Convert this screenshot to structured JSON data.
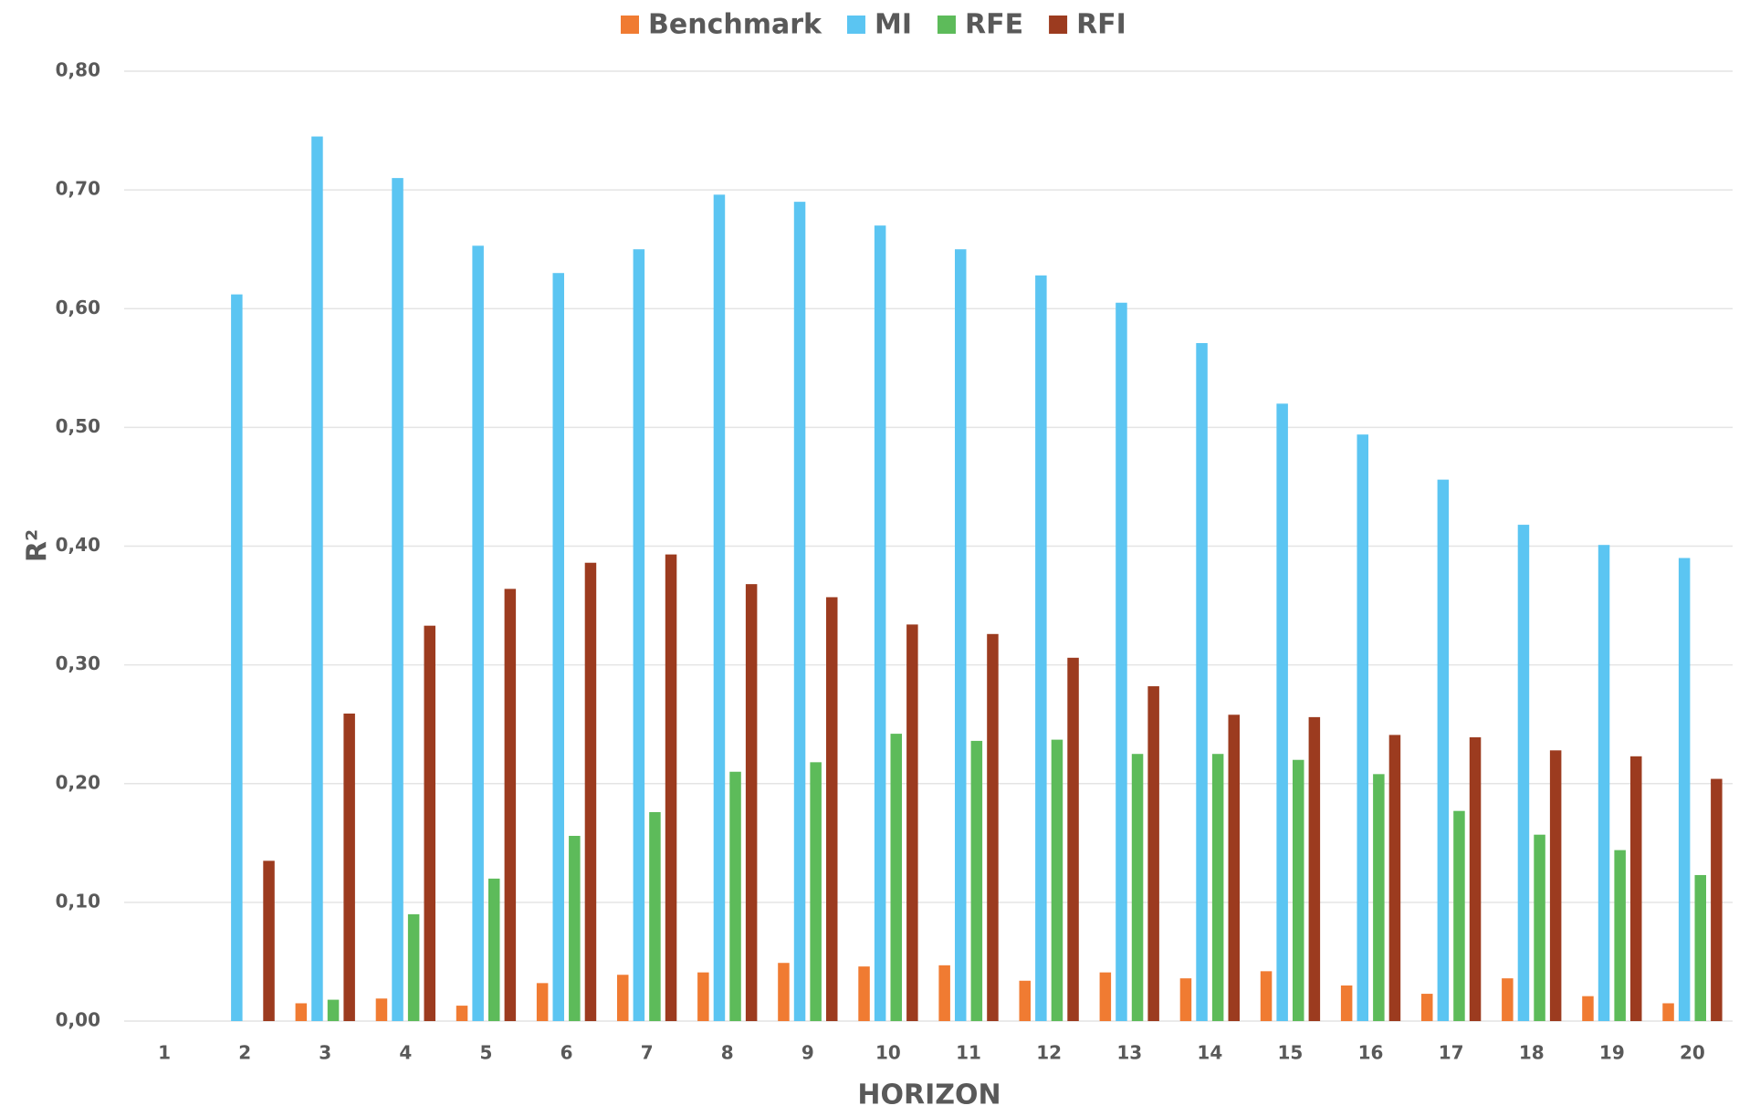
{
  "chart_data": {
    "type": "bar",
    "xlabel": "HORIZON",
    "ylabel": "R²",
    "categories": [
      "1",
      "2",
      "3",
      "4",
      "5",
      "6",
      "7",
      "8",
      "9",
      "10",
      "11",
      "12",
      "13",
      "14",
      "15",
      "16",
      "17",
      "18",
      "19",
      "20"
    ],
    "series": [
      {
        "name": "Benchmark",
        "color": "#f07b32",
        "values": [
          0,
          0,
          0.015,
          0.019,
          0.013,
          0.032,
          0.039,
          0.041,
          0.049,
          0.046,
          0.047,
          0.034,
          0.041,
          0.036,
          0.042,
          0.03,
          0.023,
          0.036,
          0.021,
          0.015
        ]
      },
      {
        "name": "MI",
        "color": "#5bc5f2",
        "values": [
          0,
          0.612,
          0.745,
          0.71,
          0.653,
          0.63,
          0.65,
          0.696,
          0.69,
          0.67,
          0.65,
          0.628,
          0.605,
          0.571,
          0.52,
          0.494,
          0.456,
          0.418,
          0.401,
          0.39
        ]
      },
      {
        "name": "RFE",
        "color": "#5dbb5a",
        "values": [
          0,
          0,
          0.018,
          0.09,
          0.12,
          0.156,
          0.176,
          0.21,
          0.218,
          0.242,
          0.236,
          0.237,
          0.225,
          0.225,
          0.22,
          0.208,
          0.177,
          0.157,
          0.144,
          0.123
        ]
      },
      {
        "name": "RFI",
        "color": "#9c3b1f",
        "values": [
          0,
          0.135,
          0.259,
          0.333,
          0.364,
          0.386,
          0.393,
          0.368,
          0.357,
          0.334,
          0.326,
          0.306,
          0.282,
          0.258,
          0.256,
          0.241,
          0.239,
          0.228,
          0.223,
          0.204
        ]
      }
    ],
    "ylim": [
      0,
      0.8
    ],
    "yticks": [
      {
        "value": 0,
        "label": "0,00"
      },
      {
        "value": 0.1,
        "label": "0,10"
      },
      {
        "value": 0.2,
        "label": "0,20"
      },
      {
        "value": 0.3,
        "label": "0,30"
      },
      {
        "value": 0.4,
        "label": "0,40"
      },
      {
        "value": 0.5,
        "label": "0,50"
      },
      {
        "value": 0.6,
        "label": "0,60"
      },
      {
        "value": 0.7,
        "label": "0,70"
      },
      {
        "value": 0.8,
        "label": "0,80"
      }
    ],
    "grid": true,
    "legend": "top"
  }
}
